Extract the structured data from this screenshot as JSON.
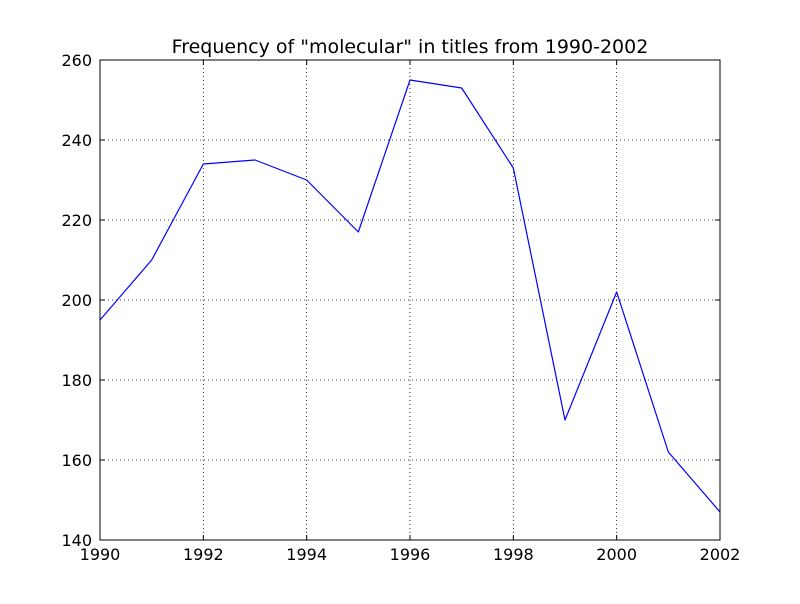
{
  "chart_data": {
    "type": "line",
    "title": "Frequency of \"molecular\" in titles from 1990-2002",
    "xlabel": "",
    "ylabel": "",
    "xlim": [
      1990,
      2002
    ],
    "ylim": [
      140,
      260
    ],
    "xticks": [
      1990,
      1992,
      1994,
      1996,
      1998,
      2000,
      2002
    ],
    "yticks": [
      140,
      160,
      180,
      200,
      220,
      240,
      260
    ],
    "xtick_labels": [
      "1990",
      "1992",
      "1994",
      "1996",
      "1998",
      "2000",
      "2002"
    ],
    "ytick_labels": [
      "140",
      "160",
      "180",
      "200",
      "220",
      "240",
      "260"
    ],
    "grid": true,
    "legend": "none",
    "series": [
      {
        "color": "#0000ff",
        "x": [
          1990,
          1991,
          1992,
          1993,
          1994,
          1995,
          1996,
          1997,
          1998,
          1999,
          2000,
          2001,
          2002
        ],
        "y": [
          195,
          210,
          234,
          235,
          230,
          217,
          255,
          253,
          233,
          170,
          202,
          162,
          147
        ]
      }
    ]
  }
}
